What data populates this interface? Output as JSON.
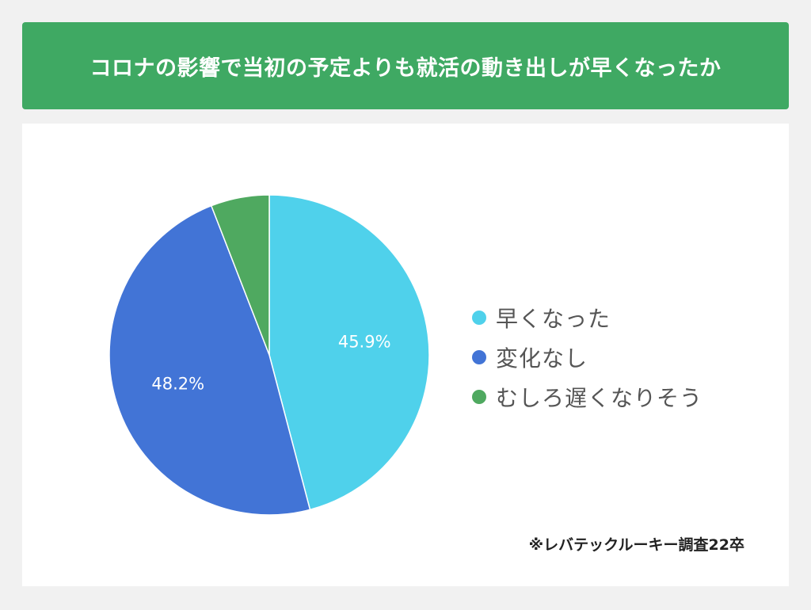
{
  "chart_data": {
    "type": "pie",
    "title": "コロナの影響で当初の予定よりも就活の動き出しが早くなったか",
    "slices": [
      {
        "label": "早くなった",
        "value": 45.9,
        "data_label": "45.9%",
        "color": "#4fd1eb"
      },
      {
        "label": "変化なし",
        "value": 48.2,
        "data_label": "48.2%",
        "color": "#4274d6"
      },
      {
        "label": "むしろ遅くなりそう",
        "value": 5.9,
        "data_label": "",
        "color": "#4fa960"
      }
    ],
    "start_angle_deg": 0,
    "direction": "clockwise",
    "legend_position": "right"
  },
  "footer": {
    "source": "※レバテックルーキー調査22卒"
  }
}
